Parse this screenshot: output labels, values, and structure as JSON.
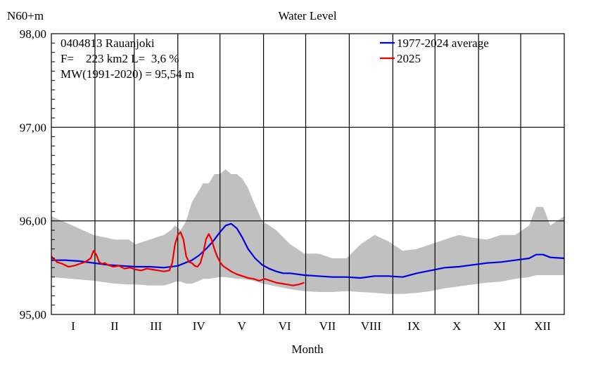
{
  "chart_data": {
    "type": "line",
    "title": "Water Level",
    "ylabel": "N60+m",
    "xlabel": "Month",
    "ylim": [
      95.0,
      98.0
    ],
    "y_ticks": [
      "95,00",
      "96,00",
      "97,00",
      "98,00"
    ],
    "y_tick_values": [
      95.0,
      96.0,
      97.0,
      98.0
    ],
    "categories": [
      "I",
      "II",
      "III",
      "IV",
      "V",
      "VI",
      "VII",
      "VIII",
      "IX",
      "X",
      "XI",
      "XII"
    ],
    "grid": true,
    "legend_position": "top-right",
    "info": {
      "line1": "0404813 Rauanjoki",
      "line2": "F=    223 km2 L=  3,6 %",
      "line3": "MW(1991-2020) = 95,54 m"
    },
    "series": [
      {
        "name": "1977-2024 average",
        "color": "#0000dd",
        "x": [
          0,
          10,
          20,
          30,
          40,
          50,
          60,
          70,
          80,
          90,
          100,
          105,
          110,
          115,
          120,
          124,
          128,
          132,
          136,
          140,
          145,
          150,
          155,
          160,
          165,
          170,
          180,
          190,
          200,
          210,
          220,
          230,
          240,
          250,
          260,
          270,
          280,
          290,
          300,
          310,
          320,
          330,
          340,
          345,
          350,
          355,
          365
        ],
        "values": [
          95.58,
          95.58,
          95.57,
          95.55,
          95.53,
          95.52,
          95.51,
          95.51,
          95.5,
          95.52,
          95.58,
          95.63,
          95.7,
          95.78,
          95.88,
          95.95,
          95.97,
          95.92,
          95.82,
          95.7,
          95.6,
          95.53,
          95.49,
          95.46,
          95.44,
          95.44,
          95.42,
          95.41,
          95.4,
          95.4,
          95.39,
          95.41,
          95.41,
          95.4,
          95.44,
          95.47,
          95.5,
          95.51,
          95.53,
          95.55,
          95.56,
          95.58,
          95.6,
          95.64,
          95.64,
          95.61,
          95.6
        ]
      },
      {
        "name": "2025",
        "color": "#ee0000",
        "x": [
          0,
          4,
          8,
          12,
          16,
          20,
          24,
          28,
          30,
          32,
          34,
          36,
          38,
          40,
          44,
          48,
          52,
          56,
          60,
          64,
          68,
          72,
          76,
          80,
          84,
          86,
          88,
          90,
          92,
          94,
          96,
          98,
          100,
          102,
          104,
          106,
          108,
          110,
          112,
          114,
          116,
          118,
          120,
          122,
          124,
          128,
          132,
          136,
          140,
          144,
          148,
          152,
          156,
          160,
          164,
          168,
          172,
          176,
          178,
          180
        ],
        "values": [
          95.62,
          95.56,
          95.54,
          95.51,
          95.52,
          95.54,
          95.56,
          95.6,
          95.68,
          95.64,
          95.56,
          95.54,
          95.55,
          95.53,
          95.51,
          95.52,
          95.49,
          95.5,
          95.48,
          95.47,
          95.49,
          95.48,
          95.47,
          95.46,
          95.47,
          95.55,
          95.75,
          95.85,
          95.88,
          95.8,
          95.62,
          95.56,
          95.55,
          95.52,
          95.51,
          95.55,
          95.65,
          95.8,
          95.86,
          95.8,
          95.7,
          95.62,
          95.56,
          95.52,
          95.5,
          95.46,
          95.43,
          95.41,
          95.39,
          95.38,
          95.36,
          95.38,
          95.36,
          95.34,
          95.33,
          95.32,
          95.31,
          95.32,
          95.33,
          95.34
        ]
      }
    ],
    "band": {
      "color": "#c0c0c0",
      "x": [
        0,
        15,
        30,
        45,
        55,
        60,
        70,
        80,
        85,
        88,
        92,
        96,
        100,
        104,
        108,
        112,
        116,
        120,
        124,
        128,
        132,
        136,
        140,
        144,
        150,
        160,
        170,
        180,
        190,
        200,
        210,
        220,
        230,
        240,
        250,
        260,
        270,
        280,
        290,
        300,
        310,
        320,
        330,
        340,
        345,
        350,
        355,
        360,
        365
      ],
      "max": [
        96.05,
        95.95,
        95.85,
        95.8,
        95.8,
        95.75,
        95.8,
        95.85,
        95.9,
        95.95,
        95.9,
        96.0,
        96.2,
        96.3,
        96.4,
        96.4,
        96.5,
        96.5,
        96.55,
        96.5,
        96.5,
        96.45,
        96.35,
        96.2,
        96.0,
        95.9,
        95.75,
        95.65,
        95.65,
        95.6,
        95.6,
        95.75,
        95.85,
        95.78,
        95.68,
        95.7,
        95.75,
        95.8,
        95.85,
        95.82,
        95.8,
        95.85,
        95.85,
        95.95,
        96.15,
        96.15,
        95.95,
        96.0,
        96.05
      ],
      "min": [
        95.4,
        95.38,
        95.36,
        95.33,
        95.32,
        95.32,
        95.31,
        95.31,
        95.33,
        95.35,
        95.35,
        95.33,
        95.33,
        95.35,
        95.38,
        95.38,
        95.39,
        95.4,
        95.4,
        95.39,
        95.38,
        95.38,
        95.37,
        95.36,
        95.33,
        95.3,
        95.27,
        95.25,
        95.24,
        95.24,
        95.25,
        95.24,
        95.23,
        95.22,
        95.22,
        95.23,
        95.25,
        95.28,
        95.3,
        95.32,
        95.34,
        95.35,
        95.38,
        95.4,
        95.42,
        95.42,
        95.42,
        95.42,
        95.42
      ]
    }
  }
}
